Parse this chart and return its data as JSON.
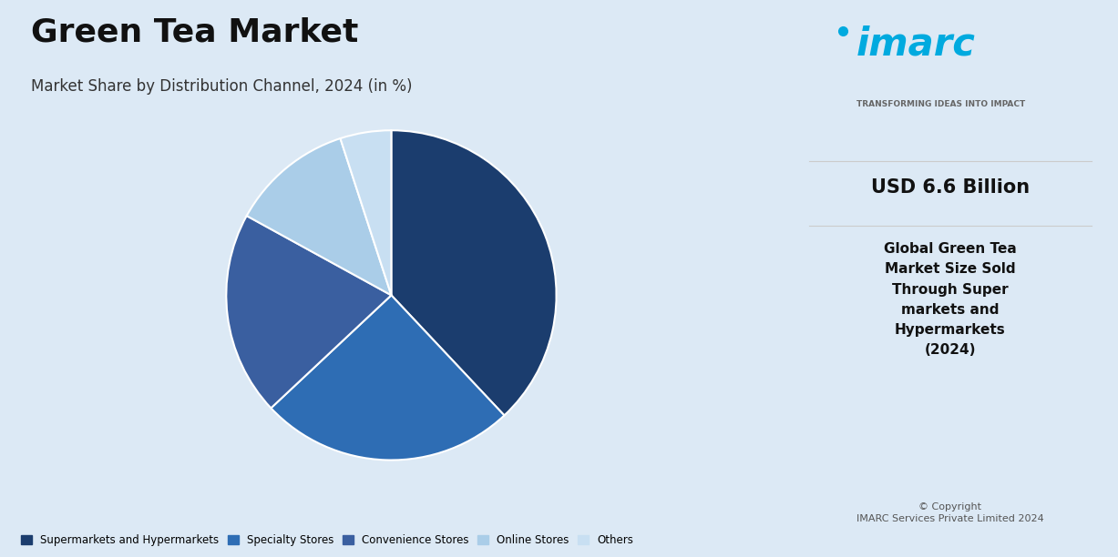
{
  "title": "Green Tea Market",
  "subtitle": "Market Share by Distribution Channel, 2024 (in %)",
  "labels": [
    "Supermarkets and Hypermarkets",
    "Specialty Stores",
    "Convenience Stores",
    "Online Stores",
    "Others"
  ],
  "values": [
    38,
    25,
    20,
    12,
    5
  ],
  "colors": [
    "#1b3d6e",
    "#2e6db4",
    "#3a5fa0",
    "#aacde8",
    "#c8dff2"
  ],
  "background_color": "#dce9f5",
  "right_panel_bg": "#ffffff",
  "title_fontsize": 26,
  "subtitle_fontsize": 12,
  "usd_text": "USD 6.6 Billion",
  "desc_text": "Global Green Tea\nMarket Size Sold\nThrough Super\nmarkets and\nHypermarkets\n(2024)",
  "copyright_text": "© Copyright\nIMARC Services Private Limited 2024",
  "imarc_text": "imarc",
  "tagline_text": "TRANSFORMING IDEAS INTO IMPACT"
}
